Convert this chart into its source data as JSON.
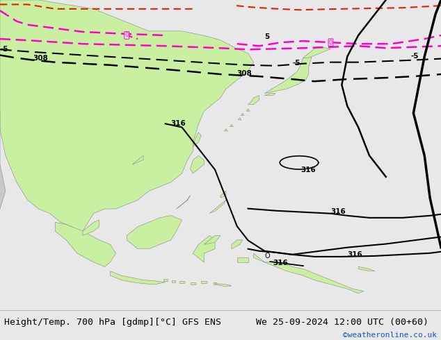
{
  "title_left": "Height/Temp. 700 hPa [gdmp][°C] GFS ENS",
  "title_right": "We 25-09-2024 12:00 UTC (00+60)",
  "credit": "©weatheronline.co.uk",
  "bg_land_green": "#c8f0a0",
  "bg_land_gray": "#c8c8c8",
  "sea_color": "#e8e8e8",
  "border_color": "#888888",
  "black": "#000000",
  "magenta": "#ff00cc",
  "red_dash": "#dd2200",
  "label_fontsize": 7.5,
  "title_fontsize": 9.5,
  "credit_fontsize": 8,
  "fig_width": 6.34,
  "fig_height": 4.9,
  "xlim": [
    85,
    165
  ],
  "ylim": [
    -15,
    55
  ]
}
